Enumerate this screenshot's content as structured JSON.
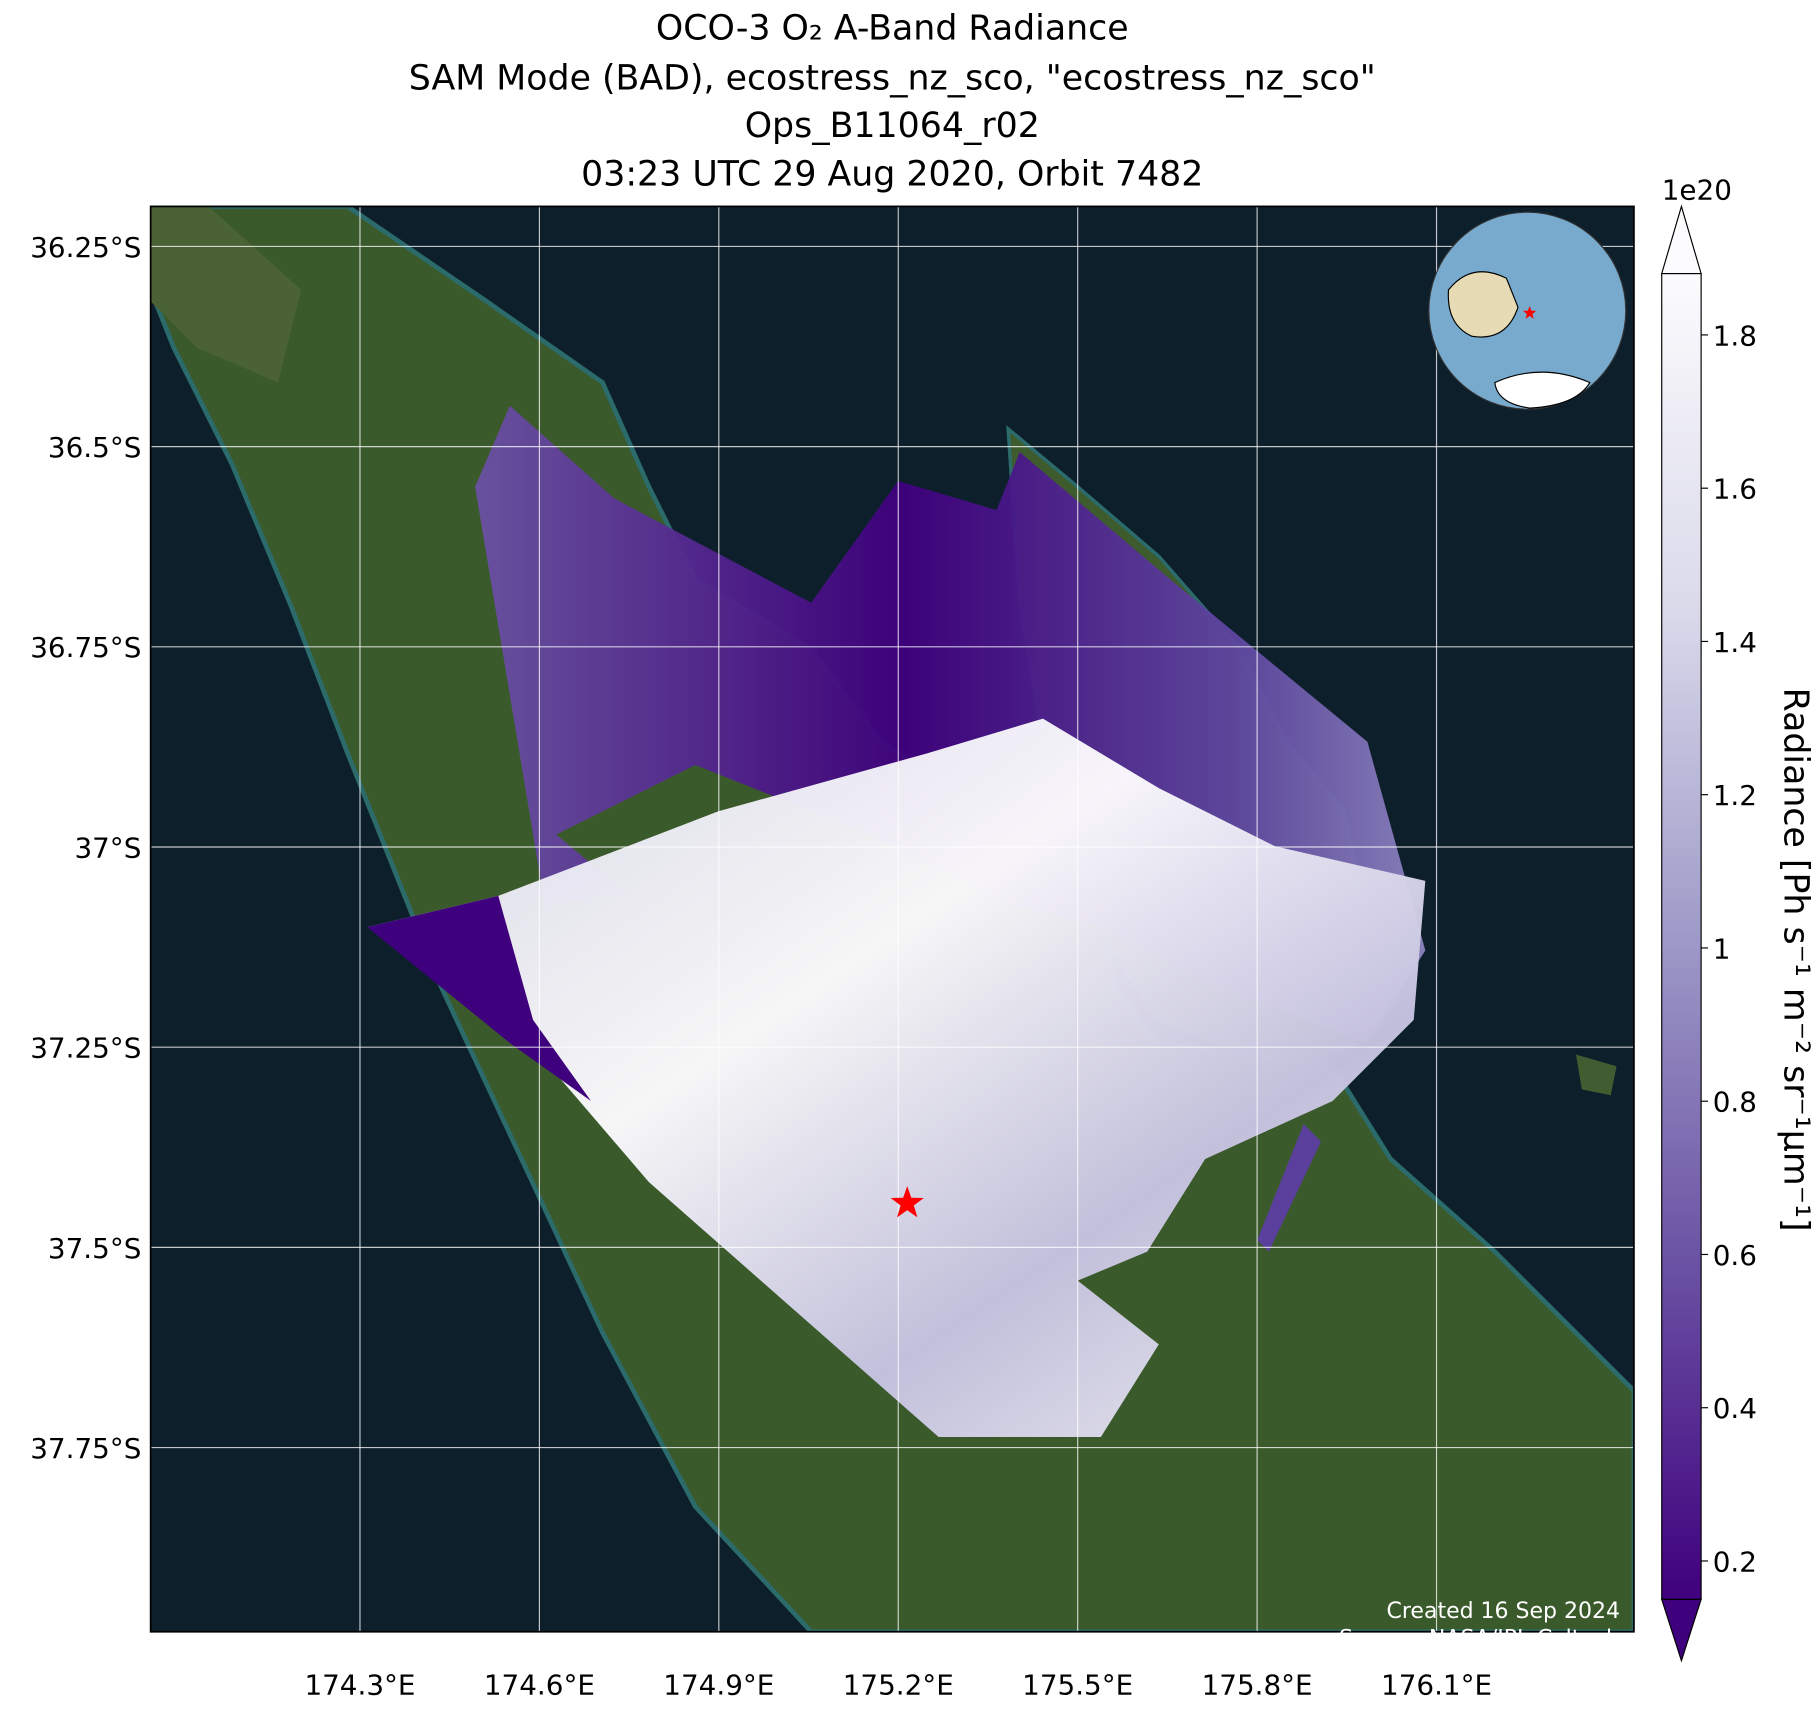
{
  "chart_data": {
    "type": "map",
    "title_lines": [
      "OCO-3 O₂ A-Band Radiance",
      "SAM Mode (BAD), ecostress_nz_sco, \"ecostress_nz_sco\"",
      "Ops_B11064_r02",
      "03:23 UTC 29 Aug 2020, Orbit 7482"
    ],
    "xlim": [
      173.95,
      176.43
    ],
    "ylim": [
      -37.98,
      -36.2
    ],
    "xticks": [
      {
        "value": 174.3,
        "label": "174.3°E"
      },
      {
        "value": 174.6,
        "label": "174.6°E"
      },
      {
        "value": 174.9,
        "label": "174.9°E"
      },
      {
        "value": 175.2,
        "label": "175.2°E"
      },
      {
        "value": 175.5,
        "label": "175.5°E"
      },
      {
        "value": 175.8,
        "label": "175.8°E"
      },
      {
        "value": 176.1,
        "label": "176.1°E"
      }
    ],
    "yticks": [
      {
        "value": -36.25,
        "label": "36.25°S"
      },
      {
        "value": -36.5,
        "label": "36.5°S"
      },
      {
        "value": -36.75,
        "label": "36.75°S"
      },
      {
        "value": -37,
        "label": "37°S"
      },
      {
        "value": -37.25,
        "label": "37.25°S"
      },
      {
        "value": -37.5,
        "label": "37.5°S"
      },
      {
        "value": -37.75,
        "label": "37.75°S"
      }
    ],
    "grid": true,
    "marker": {
      "lon": 175.215,
      "lat": -37.445,
      "color": "#ff0000"
    },
    "colorbar": {
      "label": "Radiance [Ph s⁻¹ m⁻² sr⁻¹μm⁻¹]",
      "multiplier": "1e20",
      "clim": [
        0.15,
        1.88
      ],
      "ticks": [
        0.2,
        0.4,
        0.6,
        0.8,
        1.0,
        1.2,
        1.4,
        1.6,
        1.8
      ],
      "colors": [
        "#3f007d",
        "#6a51a3",
        "#9e9ac8",
        "#dadaeb",
        "#fcfbfd"
      ]
    },
    "footer": [
      "Created 16 Sep 2024",
      "Source: NASA/JPL-Caltech"
    ]
  }
}
